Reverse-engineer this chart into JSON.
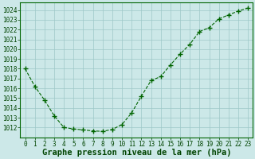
{
  "x": [
    0,
    1,
    2,
    3,
    4,
    5,
    6,
    7,
    8,
    9,
    10,
    11,
    12,
    13,
    14,
    15,
    16,
    17,
    18,
    19,
    20,
    21,
    22,
    23
  ],
  "y": [
    1018.0,
    1016.2,
    1014.8,
    1013.2,
    1012.0,
    1011.85,
    1011.75,
    1011.65,
    1011.6,
    1011.8,
    1012.3,
    1013.5,
    1015.2,
    1016.8,
    1017.2,
    1018.4,
    1019.5,
    1020.5,
    1021.8,
    1022.2,
    1023.1,
    1023.5,
    1023.9,
    1024.2
  ],
  "line_color": "#006400",
  "marker_color": "#006400",
  "background_color": "#cce8e8",
  "grid_color": "#9dc8c8",
  "text_color": "#004400",
  "xlabel": "Graphe pression niveau de la mer (hPa)",
  "ylim": [
    1011.0,
    1024.8
  ],
  "xlim": [
    -0.5,
    23.5
  ],
  "yticks": [
    1012,
    1013,
    1014,
    1015,
    1016,
    1017,
    1018,
    1019,
    1020,
    1021,
    1022,
    1023,
    1024
  ],
  "xticks": [
    0,
    1,
    2,
    3,
    4,
    5,
    6,
    7,
    8,
    9,
    10,
    11,
    12,
    13,
    14,
    15,
    16,
    17,
    18,
    19,
    20,
    21,
    22,
    23
  ],
  "tick_fontsize": 5.5,
  "label_fontsize": 7.5
}
